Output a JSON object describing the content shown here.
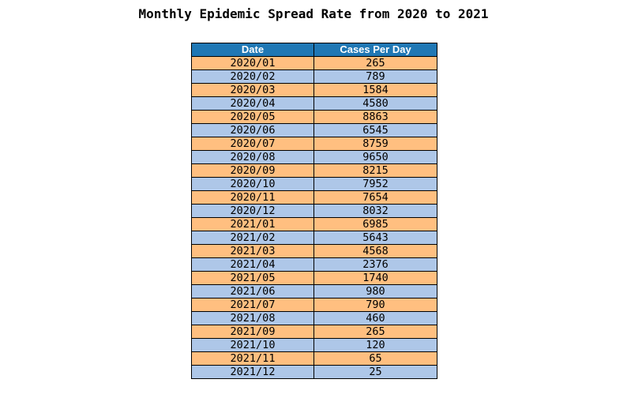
{
  "chart_data": {
    "type": "table",
    "title": "Monthly Epidemic Spread Rate from 2020 to 2021",
    "columns": [
      "Date",
      "Cases Per Day"
    ],
    "rows": [
      [
        "2020/01",
        "265"
      ],
      [
        "2020/02",
        "789"
      ],
      [
        "2020/03",
        "1584"
      ],
      [
        "2020/04",
        "4580"
      ],
      [
        "2020/05",
        "8863"
      ],
      [
        "2020/06",
        "6545"
      ],
      [
        "2020/07",
        "8759"
      ],
      [
        "2020/08",
        "9650"
      ],
      [
        "2020/09",
        "8215"
      ],
      [
        "2020/10",
        "7952"
      ],
      [
        "2020/11",
        "7654"
      ],
      [
        "2020/12",
        "8032"
      ],
      [
        "2021/01",
        "6985"
      ],
      [
        "2021/02",
        "5643"
      ],
      [
        "2021/03",
        "4568"
      ],
      [
        "2021/04",
        "2376"
      ],
      [
        "2021/05",
        "1740"
      ],
      [
        "2021/06",
        "980"
      ],
      [
        "2021/07",
        "790"
      ],
      [
        "2021/08",
        "460"
      ],
      [
        "2021/09",
        "265"
      ],
      [
        "2021/10",
        "120"
      ],
      [
        "2021/11",
        "65"
      ],
      [
        "2021/12",
        "25"
      ]
    ],
    "colors": {
      "header": "#1f77b4",
      "row_odd": "#ffbf80",
      "row_even": "#aec7e8"
    }
  }
}
